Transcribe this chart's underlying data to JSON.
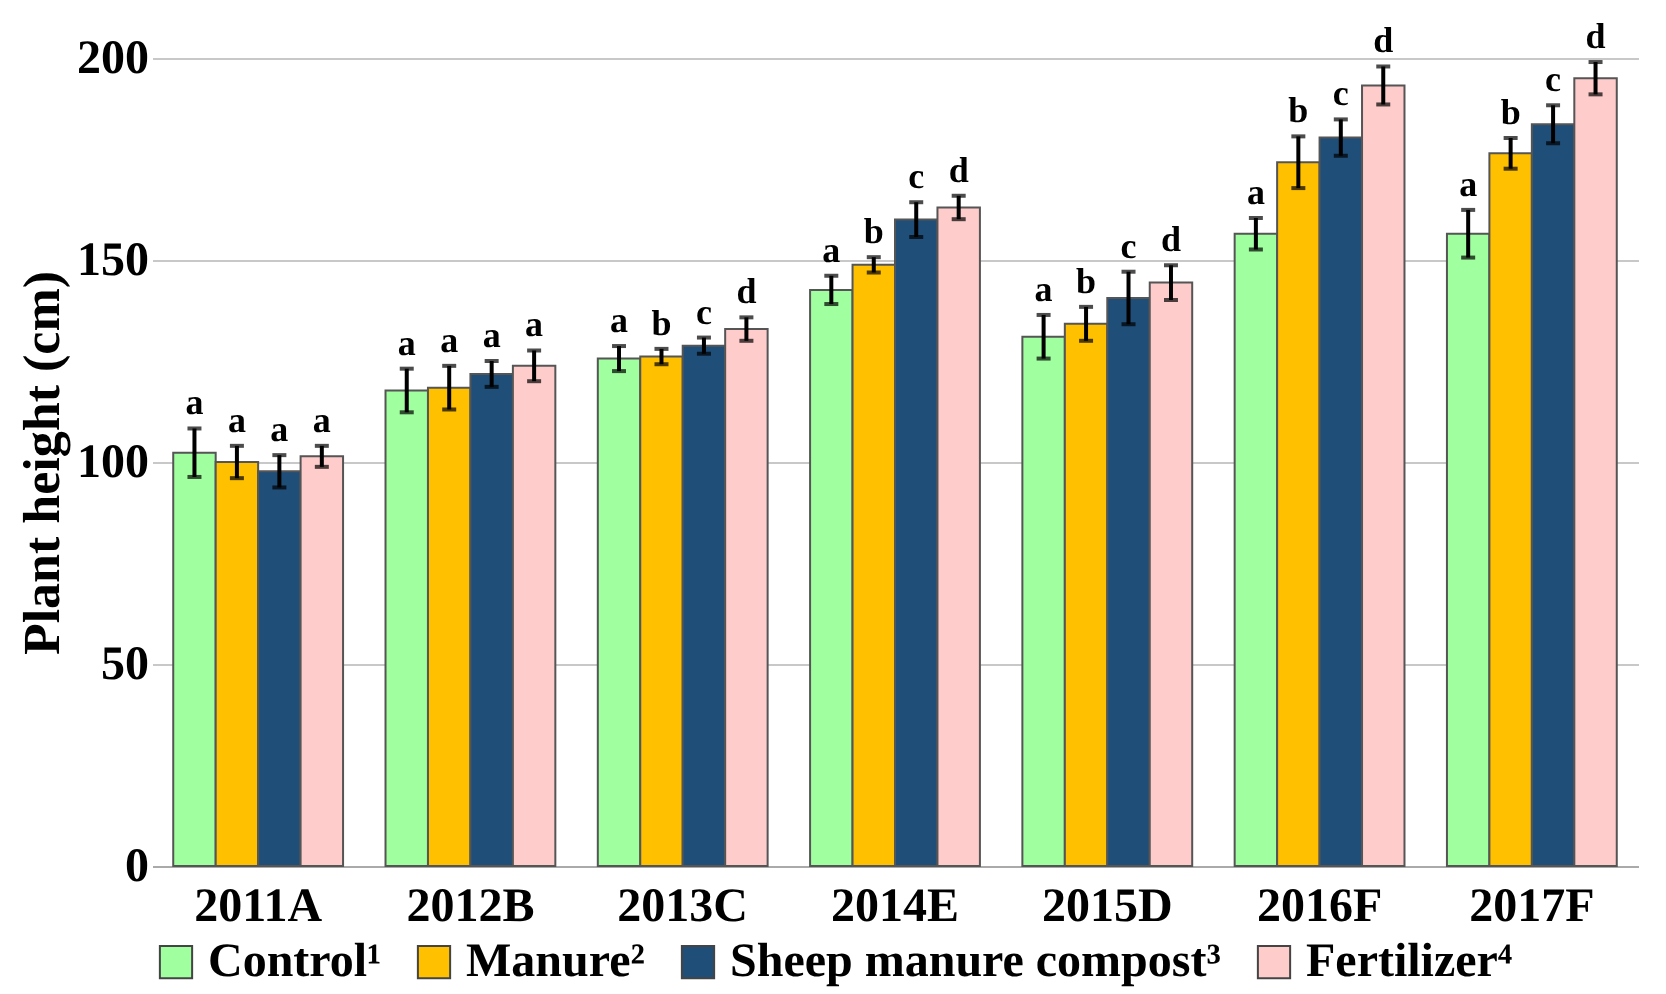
{
  "chart_data": {
    "type": "bar",
    "ylabel": "Plant height (cm)",
    "categories": [
      "2011A",
      "2012B",
      "2013C",
      "2014E",
      "2015D",
      "2016F",
      "2017F"
    ],
    "series": [
      {
        "name": "Control¹",
        "color": "#a0ff9f",
        "values": [
          102.3,
          117.7,
          125.6,
          142.6,
          131,
          156.5,
          156.5
        ],
        "errors": [
          6,
          5.4,
          3.1,
          3.5,
          5.4,
          3.9,
          5.9
        ],
        "value_labels": [
          "a",
          "a",
          "a",
          "a",
          "a",
          "a",
          "a"
        ]
      },
      {
        "name": "Manure²",
        "color": "#ffc000",
        "values": [
          100,
          118.4,
          126.1,
          148.8,
          134.2,
          174.2,
          176.4
        ],
        "errors": [
          4,
          5.4,
          1.9,
          1.9,
          4.2,
          6.4,
          3.8
        ],
        "value_labels": [
          "a",
          "a",
          "b",
          "b",
          "b",
          "b",
          "b"
        ]
      },
      {
        "name": "Sheep manure compost³",
        "color": "#1f4e79",
        "values": [
          97.7,
          121.8,
          128.8,
          160,
          140.6,
          180.3,
          183.6
        ],
        "errors": [
          4,
          3.2,
          2,
          4.3,
          6.5,
          4.5,
          4.7
        ],
        "value_labels": [
          "a",
          "a",
          "c",
          "c",
          "c",
          "c",
          "c"
        ]
      },
      {
        "name": "Fertilizer⁴",
        "color": "#ffcccc",
        "values": [
          101.4,
          123.8,
          132.9,
          163,
          144.4,
          193.2,
          195
        ],
        "errors": [
          2.6,
          3.8,
          2.9,
          2.9,
          4.3,
          4.7,
          4
        ],
        "value_labels": [
          "a",
          "a",
          "d",
          "d",
          "d",
          "d",
          "d"
        ]
      }
    ],
    "ylim": [
      0,
      200
    ],
    "yticks": [
      0,
      50,
      100,
      150,
      200
    ],
    "grid": "y",
    "legend": "bottom"
  }
}
